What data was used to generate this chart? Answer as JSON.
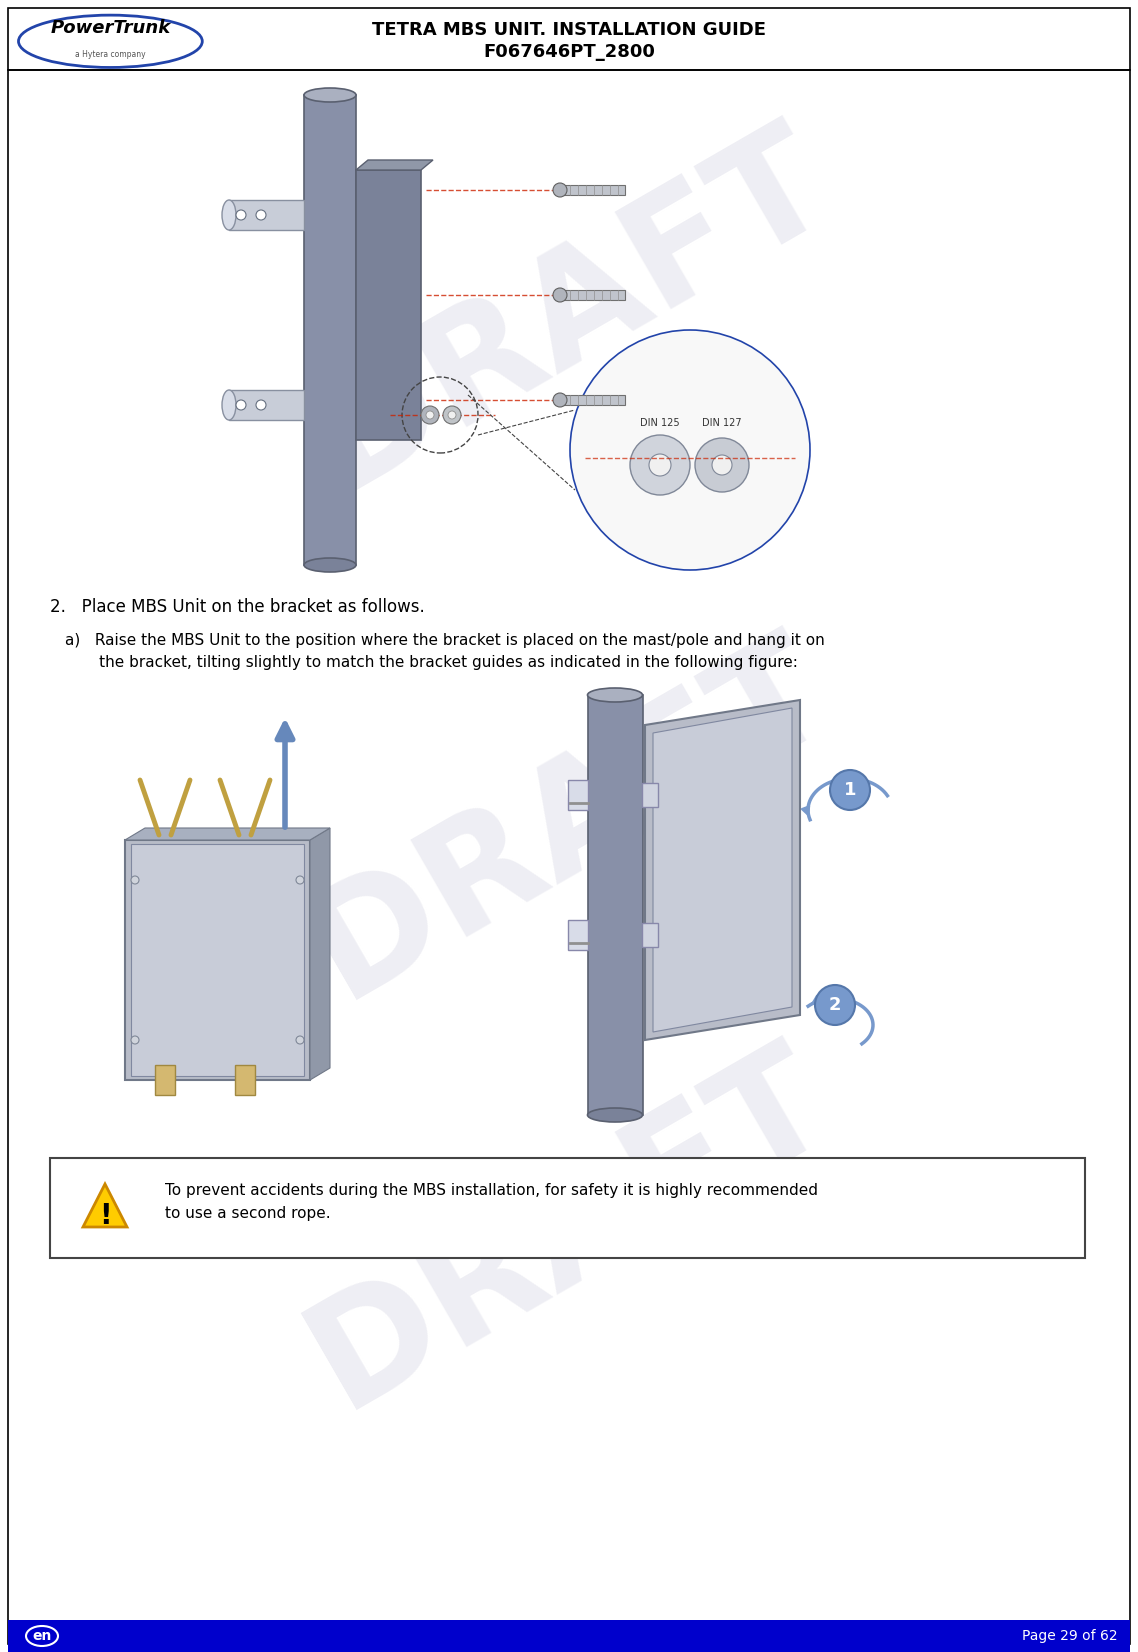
{
  "header_title_line1": "TETRA MBS UNIT. INSTALLATION GUIDE",
  "header_title_line2": "F067646PT_2800",
  "footer_left": "en",
  "footer_right": "Page 29 of 62",
  "footer_bg": "#0000cc",
  "footer_text_color": "#ffffff",
  "header_border_color": "#000000",
  "bg_color": "#ffffff",
  "body_text_color": "#000000",
  "step2_text": "2.   Place MBS Unit on the bracket as follows.",
  "step_a_text": "a)   Raise the MBS Unit to the position where the bracket is placed on the mast/pole and hang it on\n       the bracket, tilting slightly to match the bracket guides as indicated in the following figure:",
  "warning_text": "To prevent accidents during the MBS installation, for safety it is highly recommended\nto use a second rope.",
  "draft_watermark": "DRAFT",
  "draft_color": "#d0d0e0",
  "draft_alpha": 0.35
}
